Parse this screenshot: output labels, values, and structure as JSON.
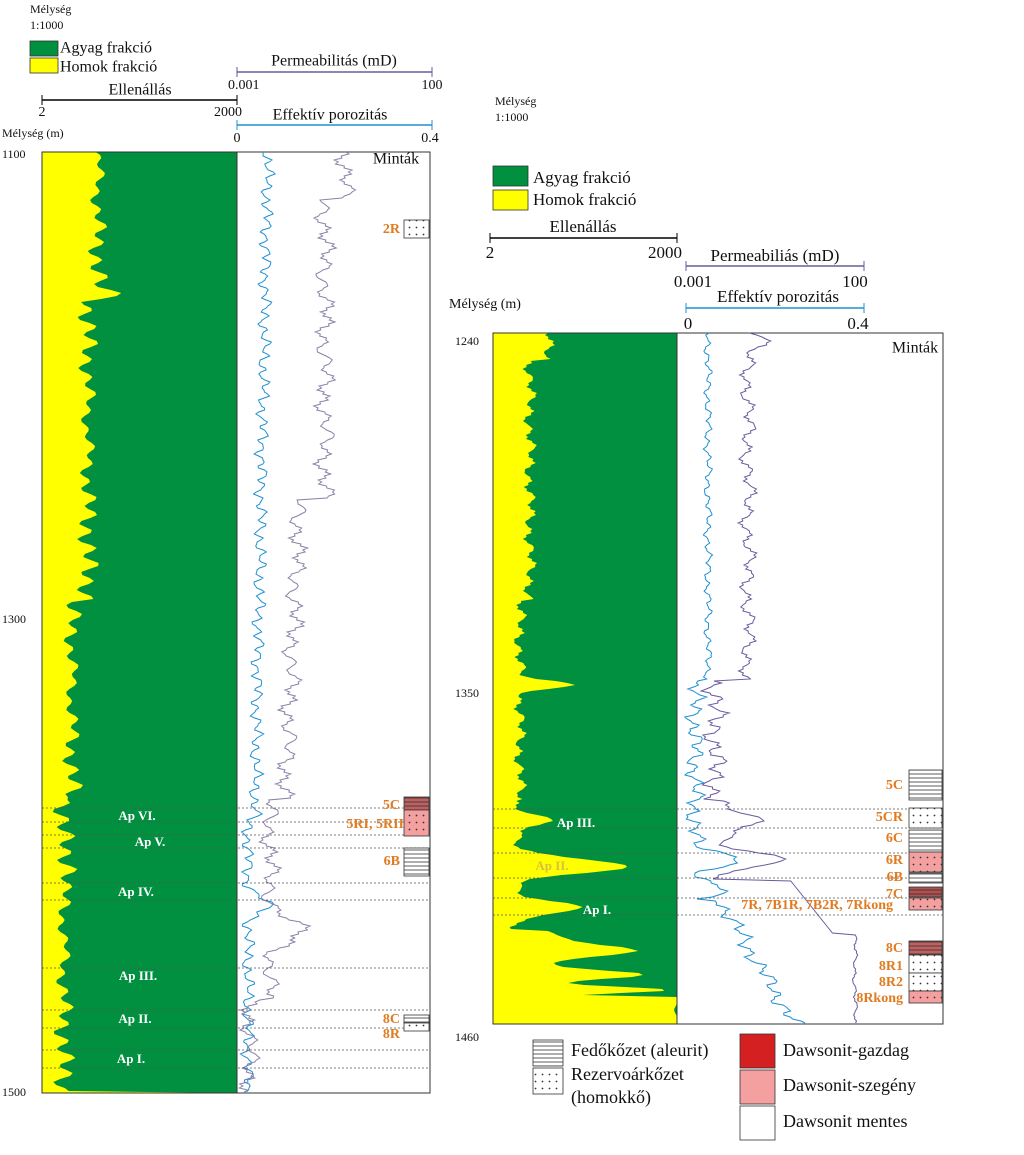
{
  "left": {
    "scale_label": "Mélység",
    "scale": "1:1000",
    "legend": [
      "Agyag frakció",
      "Homok frakció"
    ],
    "permeability": {
      "label": "Permeabilitás (mD)",
      "min": "0.001",
      "max": "100"
    },
    "resistivity": {
      "label": "Ellenállás",
      "min": "2",
      "max": "2000"
    },
    "porosity": {
      "label": "Effektív porozitás",
      "min": "0",
      "max": "0.4"
    },
    "depth_label": "Mélység (m)",
    "depths": [
      "1100",
      "1300",
      "1500"
    ],
    "samples_title": "Minták",
    "samples": [
      "2R",
      "5C",
      "5RI, 5RII",
      "6B",
      "8C",
      "8R"
    ],
    "zones": [
      "Ap VI.",
      "Ap V.",
      "Ap IV.",
      "Ap III.",
      "Ap II.",
      "Ap I."
    ]
  },
  "right": {
    "scale_label": "Mélység",
    "scale": "1:1000",
    "legend": [
      "Agyag frakció",
      "Homok frakció"
    ],
    "resistivity": {
      "label": "Ellenállás",
      "min": "2",
      "max": "2000"
    },
    "permeability": {
      "label": "Permeabiliás (mD)",
      "min": "0.001",
      "max": "100"
    },
    "depth_label": "Mélység (m)",
    "porosity": {
      "label": "Effektív porozitás",
      "min": "0",
      "max": "0.4"
    },
    "depths": [
      "1240",
      "1350",
      "1460"
    ],
    "samples_title": "Minták",
    "samples": [
      "5C",
      "5CR",
      "6C",
      "6R",
      "6B",
      "7C",
      "7R, 7B1R, 7B2R, 7Rkong",
      "8C",
      "8R1",
      "8R2",
      "8Rkong"
    ],
    "zones": [
      "Ap III.",
      "Ap II.",
      "Ap I."
    ]
  },
  "key": {
    "cap_rock": "Fedőkőzet (aleurit)",
    "reservoir": [
      "Rezervoárkőzet",
      "(homokkő)"
    ],
    "rich": "Dawsonit-gazdag",
    "poor": "Dawsonit-szegény",
    "free": "Dawsonit mentes"
  }
}
